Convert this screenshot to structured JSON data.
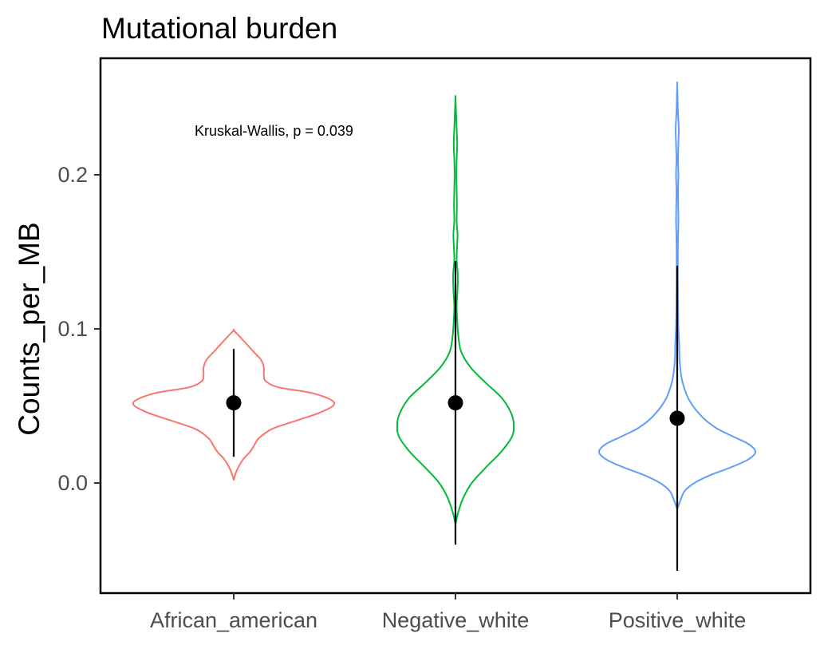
{
  "chart_data": {
    "type": "violin",
    "title": "Mutational burden",
    "xlabel": "",
    "ylabel": "Counts_per_MB",
    "ylim": [
      -0.07,
      0.27
    ],
    "yticks": [
      0.0,
      0.1,
      0.2
    ],
    "ytick_labels": [
      "0.0",
      "0.1",
      "0.2"
    ],
    "grid": false,
    "legend": "none",
    "annotation": "Kruskal-Wallis, p = 0.039",
    "categories": [
      "African_american",
      "Negative_white",
      "Positive_white"
    ],
    "series": [
      {
        "category": "African_american",
        "color": "#F8766D",
        "mean": 0.052,
        "range_low": 0.017,
        "range_high": 0.087,
        "violin_min": 0.002,
        "violin_max": 0.099,
        "density": [
          [
            0.002,
            0.0
          ],
          [
            0.008,
            0.03
          ],
          [
            0.015,
            0.09
          ],
          [
            0.02,
            0.16
          ],
          [
            0.024,
            0.2
          ],
          [
            0.029,
            0.25
          ],
          [
            0.035,
            0.38
          ],
          [
            0.04,
            0.6
          ],
          [
            0.046,
            0.87
          ],
          [
            0.052,
            1.0
          ],
          [
            0.058,
            0.8
          ],
          [
            0.062,
            0.45
          ],
          [
            0.066,
            0.32
          ],
          [
            0.07,
            0.3
          ],
          [
            0.075,
            0.3
          ],
          [
            0.08,
            0.27
          ],
          [
            0.085,
            0.2
          ],
          [
            0.09,
            0.13
          ],
          [
            0.095,
            0.06
          ],
          [
            0.099,
            0.0
          ]
        ]
      },
      {
        "category": "Negative_white",
        "color": "#00BA38",
        "mean": 0.052,
        "range_low": -0.04,
        "range_high": 0.144,
        "violin_min": -0.027,
        "violin_max": 0.25,
        "density": [
          [
            -0.027,
            0.0
          ],
          [
            -0.02,
            0.04
          ],
          [
            -0.01,
            0.13
          ],
          [
            0.0,
            0.28
          ],
          [
            0.01,
            0.52
          ],
          [
            0.02,
            0.78
          ],
          [
            0.03,
            0.97
          ],
          [
            0.038,
            1.0
          ],
          [
            0.045,
            0.96
          ],
          [
            0.055,
            0.8
          ],
          [
            0.065,
            0.52
          ],
          [
            0.075,
            0.26
          ],
          [
            0.085,
            0.1
          ],
          [
            0.095,
            0.05
          ],
          [
            0.105,
            0.03
          ],
          [
            0.115,
            0.02
          ],
          [
            0.125,
            0.035
          ],
          [
            0.135,
            0.04
          ],
          [
            0.145,
            0.02
          ],
          [
            0.155,
            0.03
          ],
          [
            0.162,
            0.035
          ],
          [
            0.17,
            0.02
          ],
          [
            0.18,
            0.025
          ],
          [
            0.19,
            0.02
          ],
          [
            0.2,
            0.015
          ],
          [
            0.21,
            0.02
          ],
          [
            0.22,
            0.03
          ],
          [
            0.23,
            0.02
          ],
          [
            0.24,
            0.01
          ],
          [
            0.25,
            0.0
          ]
        ]
      },
      {
        "category": "Positive_white",
        "color": "#619CFF",
        "mean": 0.042,
        "range_low": -0.057,
        "range_high": 0.141,
        "violin_min": -0.017,
        "violin_max": 0.259,
        "density": [
          [
            -0.017,
            0.0
          ],
          [
            -0.01,
            0.05
          ],
          [
            -0.005,
            0.1
          ],
          [
            0.0,
            0.22
          ],
          [
            0.005,
            0.42
          ],
          [
            0.01,
            0.68
          ],
          [
            0.015,
            0.9
          ],
          [
            0.02,
            1.0
          ],
          [
            0.025,
            0.92
          ],
          [
            0.03,
            0.72
          ],
          [
            0.035,
            0.52
          ],
          [
            0.04,
            0.38
          ],
          [
            0.045,
            0.28
          ],
          [
            0.05,
            0.2
          ],
          [
            0.055,
            0.14
          ],
          [
            0.06,
            0.1
          ],
          [
            0.065,
            0.07
          ],
          [
            0.07,
            0.05
          ],
          [
            0.08,
            0.03
          ],
          [
            0.09,
            0.025
          ],
          [
            0.1,
            0.015
          ],
          [
            0.11,
            0.012
          ],
          [
            0.12,
            0.01
          ],
          [
            0.13,
            0.008
          ],
          [
            0.14,
            0.008
          ],
          [
            0.15,
            0.008
          ],
          [
            0.16,
            0.01
          ],
          [
            0.17,
            0.015
          ],
          [
            0.18,
            0.012
          ],
          [
            0.19,
            0.01
          ],
          [
            0.2,
            0.015
          ],
          [
            0.21,
            0.01
          ],
          [
            0.22,
            0.015
          ],
          [
            0.23,
            0.02
          ],
          [
            0.24,
            0.01
          ],
          [
            0.25,
            0.005
          ],
          [
            0.259,
            0.0
          ]
        ]
      }
    ]
  }
}
